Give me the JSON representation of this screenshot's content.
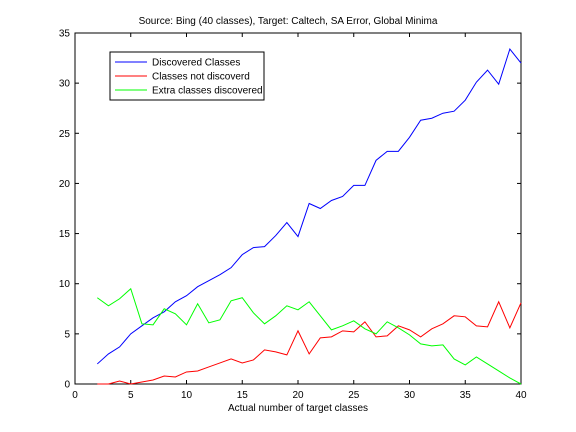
{
  "chart_data": {
    "type": "line",
    "title": "Source: Bing (40 classes), Target: Caltech, SA Error, Global Minima",
    "xlabel": "Actual number of target classes",
    "ylabel": "",
    "xlim": [
      0,
      40
    ],
    "ylim": [
      0,
      35
    ],
    "xticks": [
      0,
      5,
      10,
      15,
      20,
      25,
      30,
      35,
      40
    ],
    "yticks": [
      0,
      5,
      10,
      15,
      20,
      25,
      30,
      35
    ],
    "grid": false,
    "legend_position": "top-left",
    "x": [
      2,
      3,
      4,
      5,
      6,
      7,
      8,
      9,
      10,
      11,
      12,
      13,
      14,
      15,
      16,
      17,
      18,
      19,
      20,
      21,
      22,
      23,
      24,
      25,
      26,
      27,
      28,
      29,
      30,
      31,
      32,
      33,
      34,
      35,
      36,
      37,
      38,
      39,
      40
    ],
    "series": [
      {
        "name": "Discovered Classes",
        "color": "#0000ff",
        "values": [
          2.0,
          3.0,
          3.7,
          5.0,
          5.8,
          6.6,
          7.2,
          8.2,
          8.8,
          9.7,
          10.3,
          10.9,
          11.6,
          12.9,
          13.6,
          13.7,
          14.8,
          16.1,
          14.7,
          18.0,
          17.5,
          18.3,
          18.7,
          19.8,
          19.8,
          22.3,
          23.2,
          23.2,
          24.6,
          26.3,
          26.5,
          27.0,
          27.2,
          28.3,
          30.1,
          31.3,
          29.9,
          33.4,
          32.0
        ]
      },
      {
        "name": "Classes not discoverd",
        "color": "#ff0000",
        "values": [
          0.0,
          0.0,
          0.3,
          0.0,
          0.2,
          0.4,
          0.8,
          0.7,
          1.2,
          1.3,
          1.7,
          2.1,
          2.5,
          2.1,
          2.4,
          3.4,
          3.2,
          2.9,
          5.3,
          3.0,
          4.6,
          4.7,
          5.3,
          5.2,
          6.2,
          4.7,
          4.8,
          5.8,
          5.4,
          4.7,
          5.5,
          6.0,
          6.8,
          6.7,
          5.8,
          5.7,
          8.2,
          5.6,
          8.1
        ]
      },
      {
        "name": "Extra classes discovered",
        "color": "#00ff00",
        "values": [
          8.6,
          7.8,
          8.5,
          9.5,
          6.0,
          5.9,
          7.5,
          7.0,
          5.9,
          8.0,
          6.1,
          6.4,
          8.3,
          8.6,
          7.1,
          6.0,
          6.8,
          7.8,
          7.4,
          8.2,
          6.8,
          5.4,
          5.8,
          6.3,
          5.5,
          5.0,
          6.2,
          5.6,
          4.9,
          4.0,
          3.8,
          3.9,
          2.5,
          1.9,
          2.7,
          2.0,
          1.3,
          0.6,
          0.0
        ]
      }
    ]
  }
}
